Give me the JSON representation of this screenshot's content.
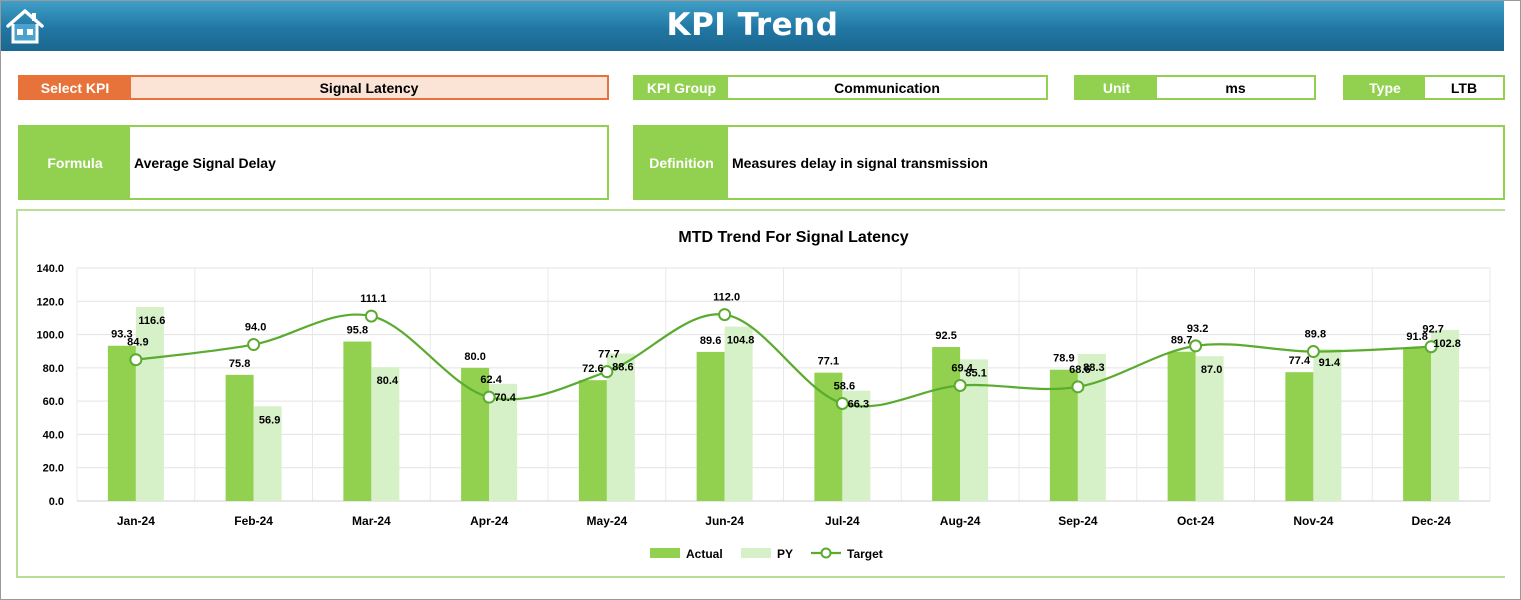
{
  "header": {
    "title": "KPI Trend",
    "home_icon": "home-icon"
  },
  "kpi": {
    "label": "Select KPI",
    "value": "Signal Latency"
  },
  "group": {
    "label": "KPI Group",
    "value": "Communication"
  },
  "unit": {
    "label": "Unit",
    "value": "ms"
  },
  "type": {
    "label": "Type",
    "value": "LTB"
  },
  "formula": {
    "label": "Formula",
    "value": "Average Signal Delay"
  },
  "definition": {
    "label": "Definition",
    "value": "Measures delay in signal transmission"
  },
  "colors": {
    "actual": "#92d050",
    "py": "#d6f0c8",
    "target": "#5aab2f",
    "accent": "#e8733a",
    "header": "#2177a3"
  },
  "chart_data": {
    "type": "bar",
    "title": "MTD Trend For Signal Latency",
    "categories": [
      "Jan-24",
      "Feb-24",
      "Mar-24",
      "Apr-24",
      "May-24",
      "Jun-24",
      "Jul-24",
      "Aug-24",
      "Sep-24",
      "Oct-24",
      "Nov-24",
      "Dec-24"
    ],
    "series": [
      {
        "name": "Actual",
        "kind": "bar",
        "values": [
          93.3,
          75.8,
          95.8,
          80.0,
          72.6,
          89.6,
          77.1,
          92.5,
          78.9,
          89.7,
          77.4,
          91.8
        ]
      },
      {
        "name": "PY",
        "kind": "bar",
        "values": [
          116.6,
          56.9,
          80.4,
          70.4,
          88.6,
          104.8,
          66.3,
          85.1,
          88.3,
          87.0,
          91.4,
          102.8
        ]
      },
      {
        "name": "Target",
        "kind": "line",
        "smooth": true,
        "values": [
          84.9,
          94.0,
          111.1,
          62.4,
          77.7,
          112.0,
          58.6,
          69.4,
          68.6,
          93.2,
          89.8,
          92.7
        ]
      }
    ],
    "ylim": [
      0,
      140
    ],
    "yticks": [
      "0.0",
      "20.0",
      "40.0",
      "60.0",
      "80.0",
      "100.0",
      "120.0",
      "140.0"
    ],
    "grid": true,
    "legend": "bottom"
  }
}
